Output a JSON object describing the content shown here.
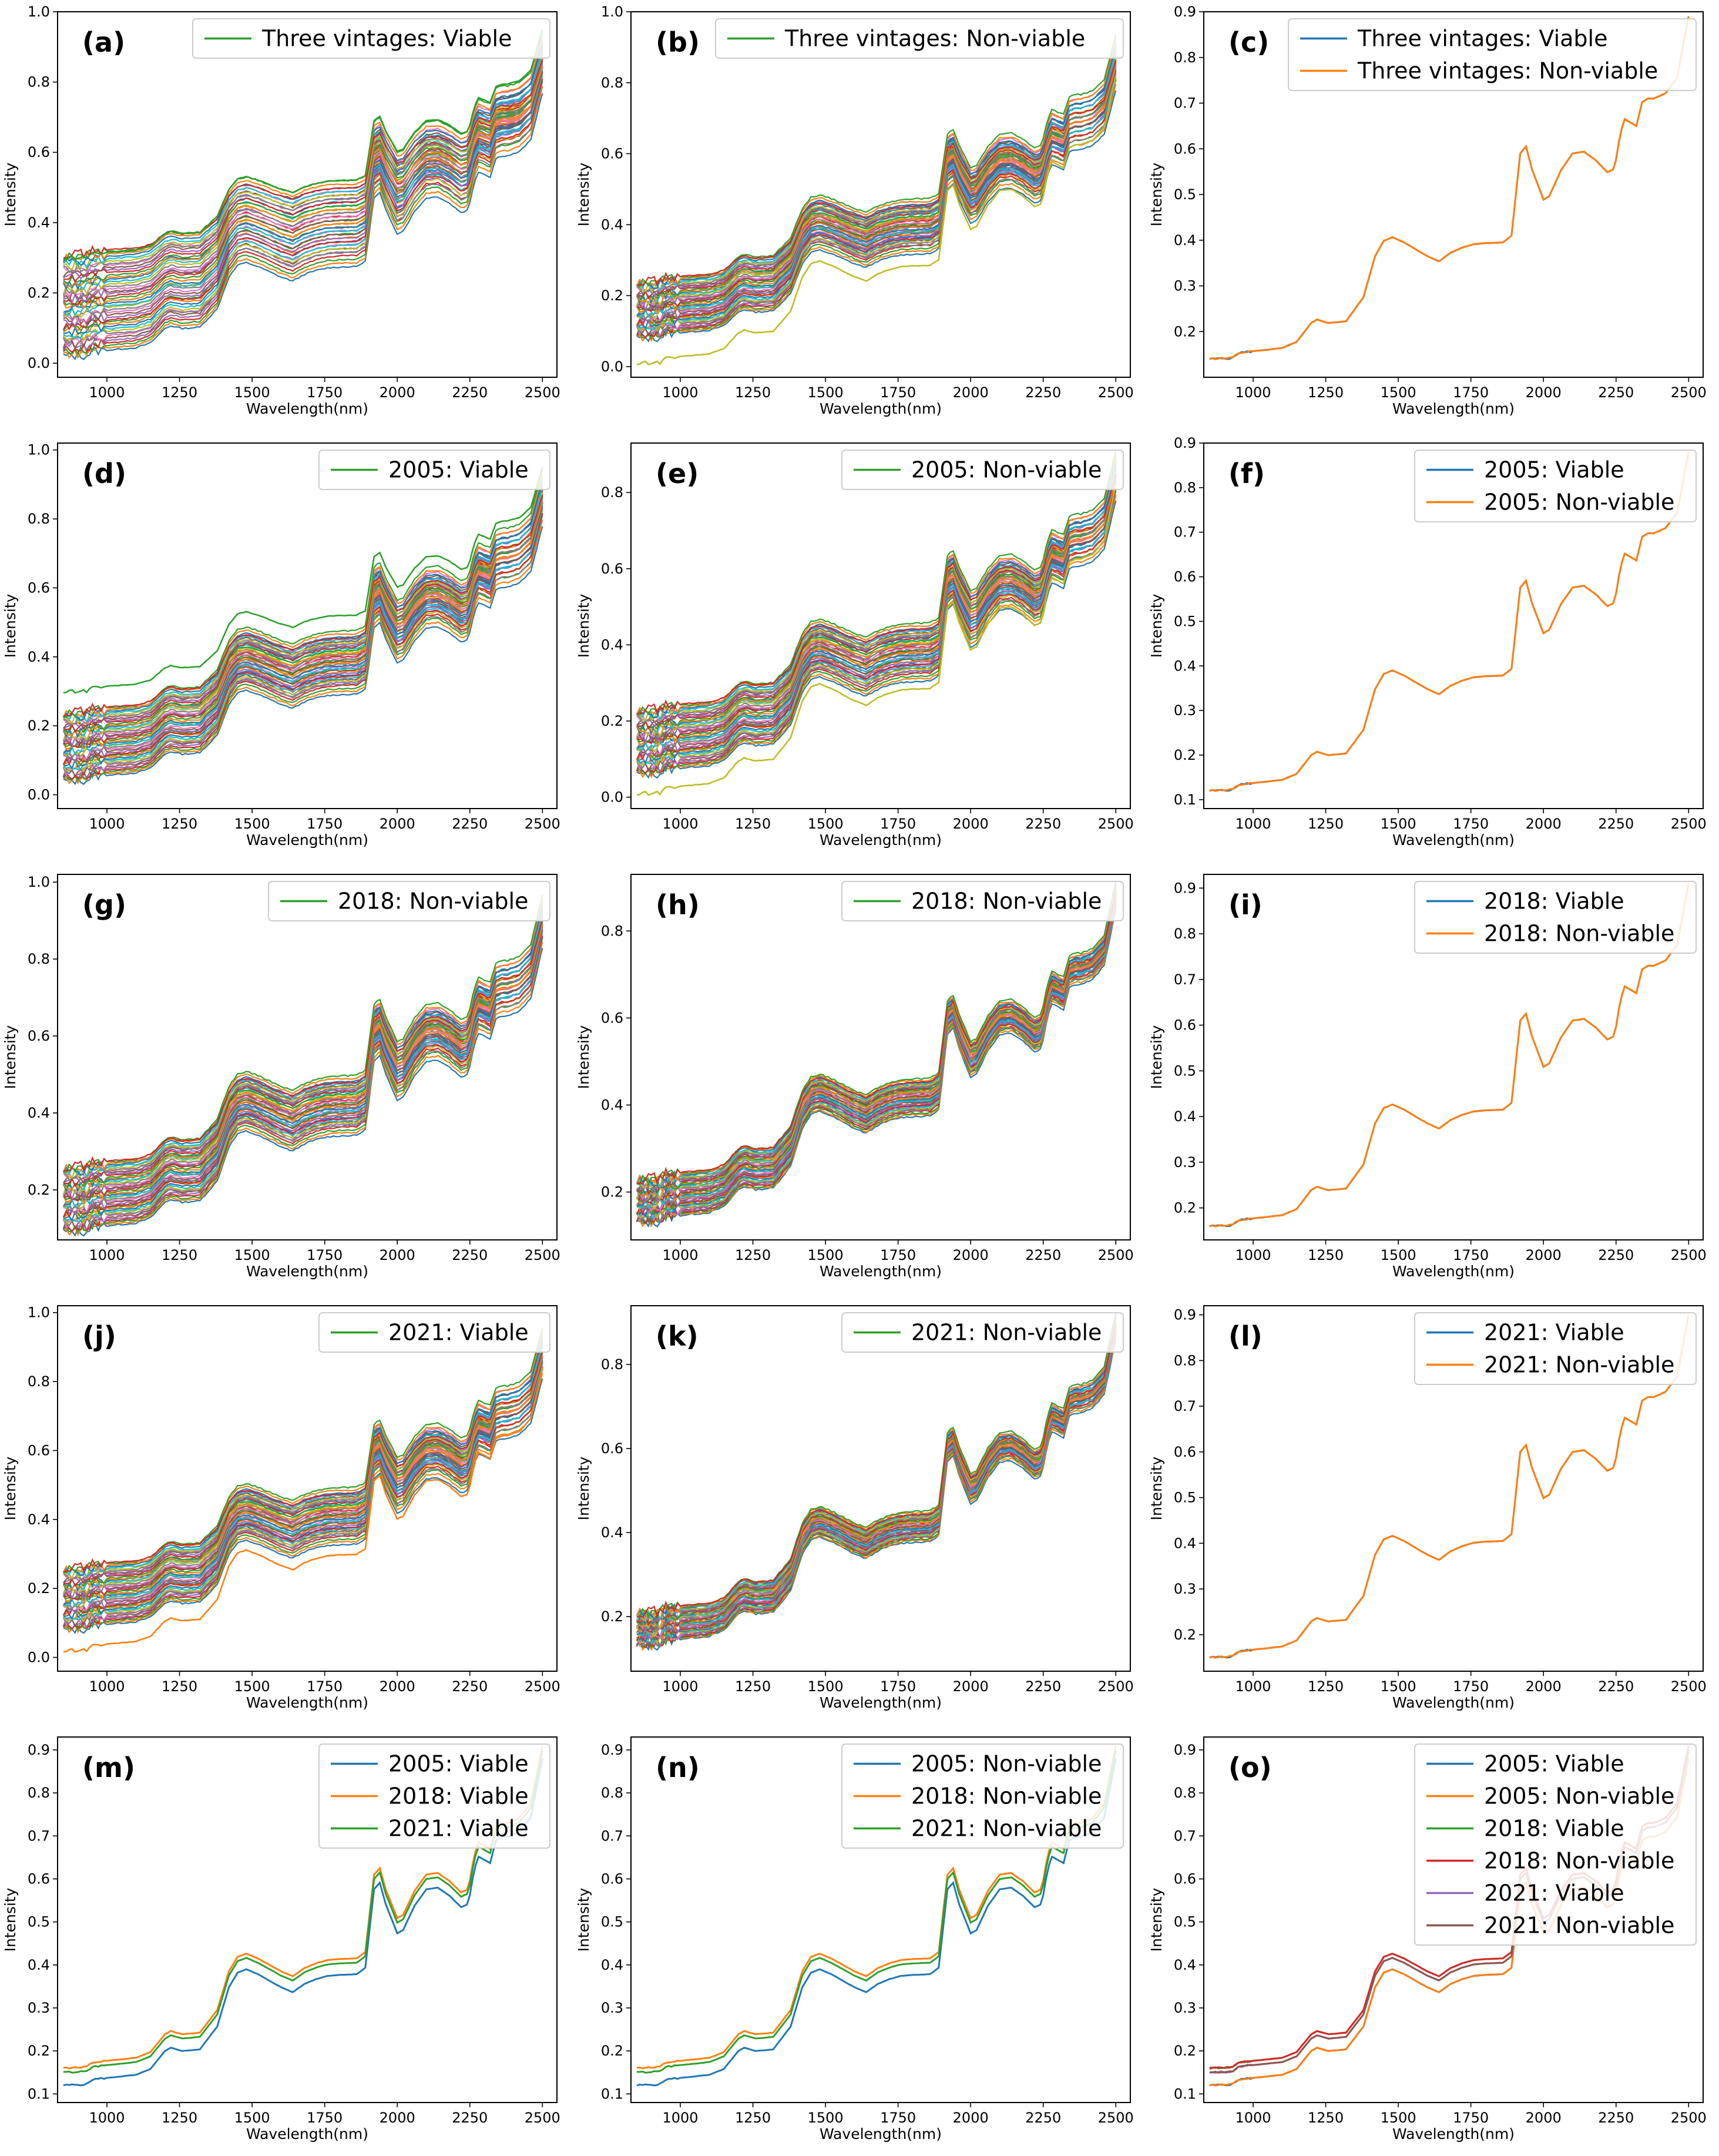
{
  "figure": {
    "rows": 5,
    "cols": 3
  },
  "colors": {
    "tab10": [
      "#1f77b4",
      "#ff7f0e",
      "#2ca02c",
      "#d62728",
      "#9467bd",
      "#8c564b",
      "#e377c2",
      "#7f7f7f",
      "#bcbd22",
      "#17becf"
    ]
  },
  "chart_data": [
    {
      "id": "a",
      "tag": "(a)",
      "type": "line",
      "mode": "many",
      "xlabel": "Wavelength(nm)",
      "ylabel": "Intensity",
      "xlim": [
        830,
        2550
      ],
      "xticks": [
        1000,
        1250,
        1500,
        1750,
        2000,
        2250,
        2500
      ],
      "ylim": [
        -0.04,
        1.0
      ],
      "yticks": [
        0.0,
        0.2,
        0.4,
        0.6,
        0.8,
        1.0
      ],
      "ytick_labels": [
        "0.0",
        "0.2",
        "0.4",
        "0.6",
        "0.8",
        "1.0"
      ],
      "legend": [
        "Three vintages: Viable"
      ],
      "legend_colors": [
        "#2ca02c"
      ],
      "min_start": 0.02,
      "max_start": 0.31,
      "min_end": 0.77,
      "max_end": 0.96,
      "outlier": {
        "start": 0.3,
        "end": 0.95,
        "color": "#2ca02c"
      }
    },
    {
      "id": "b",
      "tag": "(b)",
      "type": "line",
      "mode": "many",
      "xlabel": "Wavelength(nm)",
      "ylabel": "Intensity",
      "xlim": [
        830,
        2550
      ],
      "xticks": [
        1000,
        1250,
        1500,
        1750,
        2000,
        2250,
        2500
      ],
      "ylim": [
        -0.03,
        1.0
      ],
      "yticks": [
        0.0,
        0.2,
        0.4,
        0.6,
        0.8,
        1.0
      ],
      "ytick_labels": [
        "0.0",
        "0.2",
        "0.4",
        "0.6",
        "0.8",
        "1.0"
      ],
      "legend": [
        "Three vintages: Non-viable"
      ],
      "legend_colors": [
        "#2ca02c"
      ],
      "min_start": 0.08,
      "max_start": 0.24,
      "min_end": 0.78,
      "max_end": 0.95,
      "outlier": {
        "start": 0.01,
        "end": 0.82,
        "color": "#bcbd22"
      }
    },
    {
      "id": "c",
      "tag": "(c)",
      "type": "line",
      "mode": "mean",
      "xlabel": "Wavelength(nm)",
      "ylabel": "Intensity",
      "xlim": [
        830,
        2550
      ],
      "xticks": [
        1000,
        1250,
        1500,
        1750,
        2000,
        2250,
        2500
      ],
      "ylim": [
        0.1,
        0.9
      ],
      "yticks": [
        0.2,
        0.3,
        0.4,
        0.5,
        0.6,
        0.7,
        0.8,
        0.9
      ],
      "ytick_labels": [
        "0.2",
        "0.3",
        "0.4",
        "0.5",
        "0.6",
        "0.7",
        "0.8",
        "0.9"
      ],
      "legend": [
        "Three vintages: Viable",
        "Three vintages: Non-viable"
      ],
      "legend_colors": [
        "#1f77b4",
        "#ff7f0e"
      ],
      "series": [
        {
          "name": "Three vintages: Viable",
          "color": "#1f77b4",
          "start": 0.14,
          "end": 0.89
        },
        {
          "name": "Three vintages: Non-viable",
          "color": "#ff7f0e",
          "start": 0.14,
          "end": 0.89
        }
      ]
    },
    {
      "id": "d",
      "tag": "(d)",
      "type": "line",
      "mode": "many",
      "xlabel": "Wavelength(nm)",
      "ylabel": "Intensity",
      "xlim": [
        830,
        2550
      ],
      "xticks": [
        1000,
        1250,
        1500,
        1750,
        2000,
        2250,
        2500
      ],
      "ylim": [
        -0.04,
        1.02
      ],
      "yticks": [
        0.0,
        0.2,
        0.4,
        0.6,
        0.8,
        1.0
      ],
      "ytick_labels": [
        "0.0",
        "0.2",
        "0.4",
        "0.6",
        "0.8",
        "1.0"
      ],
      "legend": [
        "2005: Viable"
      ],
      "legend_colors": [
        "#2ca02c"
      ],
      "min_start": 0.04,
      "max_start": 0.24,
      "min_end": 0.78,
      "max_end": 0.96,
      "outlier": {
        "start": 0.3,
        "end": 0.95,
        "color": "#2ca02c"
      }
    },
    {
      "id": "e",
      "tag": "(e)",
      "type": "line",
      "mode": "many",
      "xlabel": "Wavelength(nm)",
      "ylabel": "Intensity",
      "xlim": [
        830,
        2550
      ],
      "xticks": [
        1000,
        1250,
        1500,
        1750,
        2000,
        2250,
        2500
      ],
      "ylim": [
        -0.03,
        0.93
      ],
      "yticks": [
        0.0,
        0.2,
        0.4,
        0.6,
        0.8
      ],
      "ytick_labels": [
        "0.0",
        "0.2",
        "0.4",
        "0.6",
        "0.8"
      ],
      "legend": [
        "2005: Non-viable"
      ],
      "legend_colors": [
        "#2ca02c"
      ],
      "min_start": 0.06,
      "max_start": 0.23,
      "min_end": 0.78,
      "max_end": 0.92,
      "outlier": {
        "start": 0.01,
        "end": 0.82,
        "color": "#bcbd22"
      }
    },
    {
      "id": "f",
      "tag": "(f)",
      "type": "line",
      "mode": "mean",
      "xlabel": "Wavelength(nm)",
      "ylabel": "Intensity",
      "xlim": [
        830,
        2550
      ],
      "xticks": [
        1000,
        1250,
        1500,
        1750,
        2000,
        2250,
        2500
      ],
      "ylim": [
        0.08,
        0.9
      ],
      "yticks": [
        0.1,
        0.2,
        0.3,
        0.4,
        0.5,
        0.6,
        0.7,
        0.8,
        0.9
      ],
      "ytick_labels": [
        "0.1",
        "0.2",
        "0.3",
        "0.4",
        "0.5",
        "0.6",
        "0.7",
        "0.8",
        "0.9"
      ],
      "legend": [
        "2005: Viable",
        "2005: Non-viable"
      ],
      "legend_colors": [
        "#1f77b4",
        "#ff7f0e"
      ],
      "series": [
        {
          "name": "2005: Viable",
          "color": "#1f77b4",
          "start": 0.12,
          "end": 0.88
        },
        {
          "name": "2005: Non-viable",
          "color": "#ff7f0e",
          "start": 0.12,
          "end": 0.88
        }
      ]
    },
    {
      "id": "g",
      "tag": "(g)",
      "type": "line",
      "mode": "many",
      "xlabel": "Wavelength(nm)",
      "ylabel": "Intensity",
      "xlim": [
        830,
        2550
      ],
      "xticks": [
        1000,
        1250,
        1500,
        1750,
        2000,
        2250,
        2500
      ],
      "ylim": [
        0.07,
        1.02
      ],
      "yticks": [
        0.2,
        0.4,
        0.6,
        0.8,
        1.0
      ],
      "ytick_labels": [
        "0.2",
        "0.4",
        "0.6",
        "0.8",
        "1.0"
      ],
      "legend": [
        "2018: Non-viable"
      ],
      "legend_colors": [
        "#2ca02c"
      ],
      "min_start": 0.09,
      "max_start": 0.26,
      "min_end": 0.83,
      "max_end": 0.98
    },
    {
      "id": "h",
      "tag": "(h)",
      "type": "line",
      "mode": "many",
      "xlabel": "Wavelength(nm)",
      "ylabel": "Intensity",
      "xlim": [
        830,
        2550
      ],
      "xticks": [
        1000,
        1250,
        1500,
        1750,
        2000,
        2250,
        2500
      ],
      "ylim": [
        0.09,
        0.93
      ],
      "yticks": [
        0.2,
        0.4,
        0.6,
        0.8
      ],
      "ytick_labels": [
        "0.2",
        "0.4",
        "0.6",
        "0.8"
      ],
      "legend": [
        "2018: Non-viable"
      ],
      "legend_colors": [
        "#2ca02c"
      ],
      "min_start": 0.13,
      "max_start": 0.23,
      "min_end": 0.85,
      "max_end": 0.92
    },
    {
      "id": "i",
      "tag": "(i)",
      "type": "line",
      "mode": "mean",
      "xlabel": "Wavelength(nm)",
      "ylabel": "Intensity",
      "xlim": [
        830,
        2550
      ],
      "xticks": [
        1000,
        1250,
        1500,
        1750,
        2000,
        2250,
        2500
      ],
      "ylim": [
        0.13,
        0.93
      ],
      "yticks": [
        0.2,
        0.3,
        0.4,
        0.5,
        0.6,
        0.7,
        0.8,
        0.9
      ],
      "ytick_labels": [
        "0.2",
        "0.3",
        "0.4",
        "0.5",
        "0.6",
        "0.7",
        "0.8",
        "0.9"
      ],
      "legend": [
        "2018: Viable",
        "2018: Non-viable"
      ],
      "legend_colors": [
        "#1f77b4",
        "#ff7f0e"
      ],
      "series": [
        {
          "name": "2018: Viable",
          "color": "#1f77b4",
          "start": 0.16,
          "end": 0.91
        },
        {
          "name": "2018: Non-viable",
          "color": "#ff7f0e",
          "start": 0.16,
          "end": 0.91
        }
      ]
    },
    {
      "id": "j",
      "tag": "(j)",
      "type": "line",
      "mode": "many",
      "xlabel": "Wavelength(nm)",
      "ylabel": "Intensity",
      "xlim": [
        830,
        2550
      ],
      "xticks": [
        1000,
        1250,
        1500,
        1750,
        2000,
        2250,
        2500
      ],
      "ylim": [
        -0.04,
        1.02
      ],
      "yticks": [
        0.0,
        0.2,
        0.4,
        0.6,
        0.8,
        1.0
      ],
      "ytick_labels": [
        "0.0",
        "0.2",
        "0.4",
        "0.6",
        "0.8",
        "1.0"
      ],
      "legend": [
        "2021: Viable"
      ],
      "legend_colors": [
        "#2ca02c"
      ],
      "min_start": 0.08,
      "max_start": 0.26,
      "min_end": 0.81,
      "max_end": 0.97,
      "outlier": {
        "start": 0.02,
        "end": 0.84,
        "color": "#ff7f0e"
      }
    },
    {
      "id": "k",
      "tag": "(k)",
      "type": "line",
      "mode": "many",
      "xlabel": "Wavelength(nm)",
      "ylabel": "Intensity",
      "xlim": [
        830,
        2550
      ],
      "xticks": [
        1000,
        1250,
        1500,
        1750,
        2000,
        2250,
        2500
      ],
      "ylim": [
        0.07,
        0.94
      ],
      "yticks": [
        0.2,
        0.4,
        0.6,
        0.8
      ],
      "ytick_labels": [
        "0.2",
        "0.4",
        "0.6",
        "0.8"
      ],
      "legend": [
        "2021: Non-viable"
      ],
      "legend_colors": [
        "#2ca02c"
      ],
      "min_start": 0.13,
      "max_start": 0.21,
      "min_end": 0.86,
      "max_end": 0.93
    },
    {
      "id": "l",
      "tag": "(l)",
      "type": "line",
      "mode": "mean",
      "xlabel": "Wavelength(nm)",
      "ylabel": "Intensity",
      "xlim": [
        830,
        2550
      ],
      "xticks": [
        1000,
        1250,
        1500,
        1750,
        2000,
        2250,
        2500
      ],
      "ylim": [
        0.12,
        0.92
      ],
      "yticks": [
        0.2,
        0.3,
        0.4,
        0.5,
        0.6,
        0.7,
        0.8,
        0.9
      ],
      "ytick_labels": [
        "0.2",
        "0.3",
        "0.4",
        "0.5",
        "0.6",
        "0.7",
        "0.8",
        "0.9"
      ],
      "legend": [
        "2021: Viable",
        "2021: Non-viable"
      ],
      "legend_colors": [
        "#1f77b4",
        "#ff7f0e"
      ],
      "series": [
        {
          "name": "2021: Viable",
          "color": "#1f77b4",
          "start": 0.15,
          "end": 0.9
        },
        {
          "name": "2021: Non-viable",
          "color": "#ff7f0e",
          "start": 0.15,
          "end": 0.9
        }
      ]
    },
    {
      "id": "m",
      "tag": "(m)",
      "type": "line",
      "mode": "mean",
      "xlabel": "Wavelength(nm)",
      "ylabel": "Intensity",
      "xlim": [
        830,
        2550
      ],
      "xticks": [
        1000,
        1250,
        1500,
        1750,
        2000,
        2250,
        2500
      ],
      "ylim": [
        0.08,
        0.93
      ],
      "yticks": [
        0.1,
        0.2,
        0.3,
        0.4,
        0.5,
        0.6,
        0.7,
        0.8,
        0.9
      ],
      "ytick_labels": [
        "0.1",
        "0.2",
        "0.3",
        "0.4",
        "0.5",
        "0.6",
        "0.7",
        "0.8",
        "0.9"
      ],
      "legend": [
        "2005: Viable",
        "2018: Viable",
        "2021: Viable"
      ],
      "legend_colors": [
        "#1f77b4",
        "#ff7f0e",
        "#2ca02c"
      ],
      "series": [
        {
          "name": "2005: Viable",
          "color": "#1f77b4",
          "start": 0.12,
          "end": 0.88
        },
        {
          "name": "2018: Viable",
          "color": "#ff7f0e",
          "start": 0.16,
          "end": 0.91
        },
        {
          "name": "2021: Viable",
          "color": "#2ca02c",
          "start": 0.15,
          "end": 0.9
        }
      ]
    },
    {
      "id": "n",
      "tag": "(n)",
      "type": "line",
      "mode": "mean",
      "xlabel": "Wavelength(nm)",
      "ylabel": "Intensity",
      "xlim": [
        830,
        2550
      ],
      "xticks": [
        1000,
        1250,
        1500,
        1750,
        2000,
        2250,
        2500
      ],
      "ylim": [
        0.08,
        0.93
      ],
      "yticks": [
        0.1,
        0.2,
        0.3,
        0.4,
        0.5,
        0.6,
        0.7,
        0.8,
        0.9
      ],
      "ytick_labels": [
        "0.1",
        "0.2",
        "0.3",
        "0.4",
        "0.5",
        "0.6",
        "0.7",
        "0.8",
        "0.9"
      ],
      "legend": [
        "2005: Non-viable",
        "2018: Non-viable",
        "2021: Non-viable"
      ],
      "legend_colors": [
        "#1f77b4",
        "#ff7f0e",
        "#2ca02c"
      ],
      "series": [
        {
          "name": "2005: Non-viable",
          "color": "#1f77b4",
          "start": 0.12,
          "end": 0.88
        },
        {
          "name": "2018: Non-viable",
          "color": "#ff7f0e",
          "start": 0.16,
          "end": 0.91
        },
        {
          "name": "2021: Non-viable",
          "color": "#2ca02c",
          "start": 0.15,
          "end": 0.9
        }
      ]
    },
    {
      "id": "o",
      "tag": "(o)",
      "type": "line",
      "mode": "mean",
      "xlabel": "Wavelength(nm)",
      "ylabel": "Intensity",
      "xlim": [
        830,
        2550
      ],
      "xticks": [
        1000,
        1250,
        1500,
        1750,
        2000,
        2250,
        2500
      ],
      "ylim": [
        0.08,
        0.93
      ],
      "yticks": [
        0.1,
        0.2,
        0.3,
        0.4,
        0.5,
        0.6,
        0.7,
        0.8,
        0.9
      ],
      "ytick_labels": [
        "0.1",
        "0.2",
        "0.3",
        "0.4",
        "0.5",
        "0.6",
        "0.7",
        "0.8",
        "0.9"
      ],
      "legend": [
        "2005: Viable",
        "2005: Non-viable",
        "2018: Viable",
        "2018: Non-viable",
        "2021: Viable",
        "2021: Non-viable"
      ],
      "legend_colors": [
        "#1f77b4",
        "#ff7f0e",
        "#2ca02c",
        "#d62728",
        "#9467bd",
        "#8c564b"
      ],
      "series": [
        {
          "name": "2005: Viable",
          "color": "#1f77b4",
          "start": 0.12,
          "end": 0.88
        },
        {
          "name": "2005: Non-viable",
          "color": "#ff7f0e",
          "start": 0.12,
          "end": 0.88
        },
        {
          "name": "2018: Viable",
          "color": "#2ca02c",
          "start": 0.16,
          "end": 0.91
        },
        {
          "name": "2018: Non-viable",
          "color": "#d62728",
          "start": 0.16,
          "end": 0.91
        },
        {
          "name": "2021: Viable",
          "color": "#9467bd",
          "start": 0.15,
          "end": 0.9
        },
        {
          "name": "2021: Non-viable",
          "color": "#8c564b",
          "start": 0.15,
          "end": 0.9
        }
      ]
    }
  ]
}
